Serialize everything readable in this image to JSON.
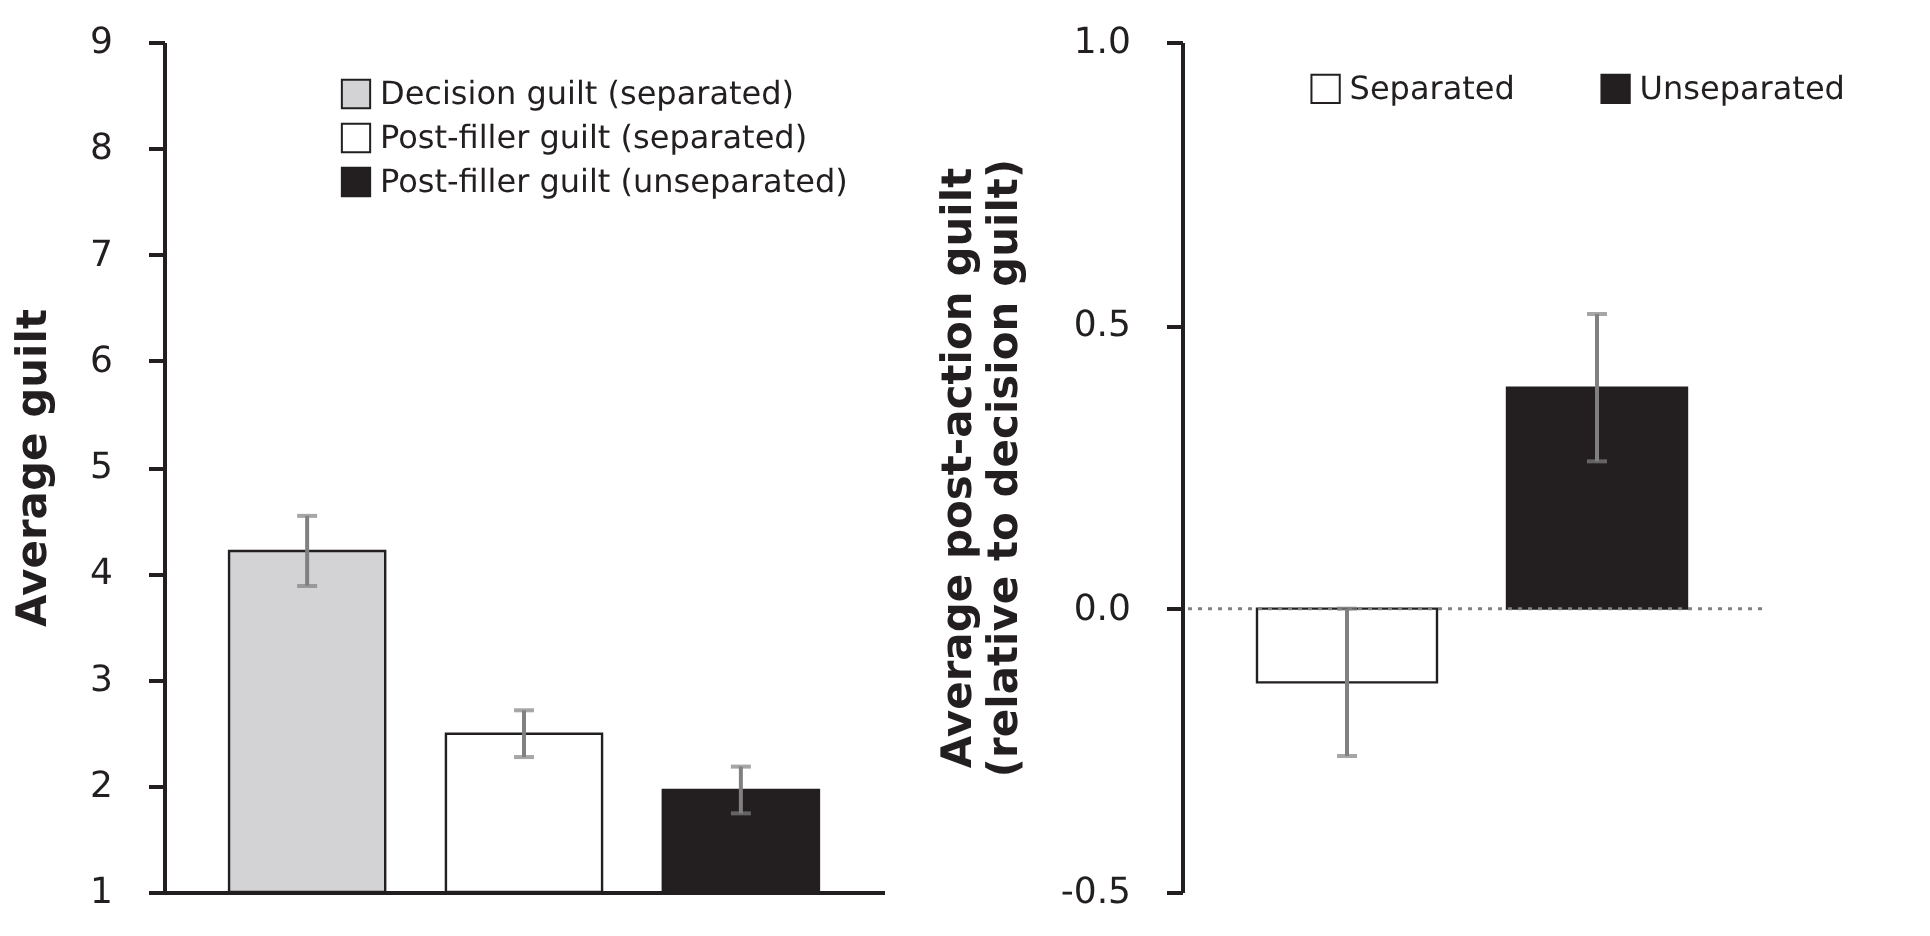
{
  "chart_data": [
    {
      "type": "bar",
      "ylabel": "Average guilt",
      "categories": [
        null,
        null,
        null
      ],
      "ylim": [
        1,
        9
      ],
      "yticks": [
        1,
        2,
        3,
        4,
        5,
        6,
        7,
        8,
        9
      ],
      "grid": false,
      "legend": "top right",
      "tick_labels": "y",
      "series": [
        {
          "name": "Decision guilt (separated)",
          "color": "#d3d3d5",
          "values": [
            4.21,
            null,
            null
          ],
          "errors": [
            0.33,
            null,
            null
          ]
        },
        {
          "name": "Post-filler guilt (separated)",
          "color": "#ffffff",
          "values": [
            null,
            2.49,
            null
          ],
          "errors": [
            null,
            0.22,
            null
          ]
        },
        {
          "name": "Post-filler guilt (unseparated)",
          "color": "#231f20",
          "values": [
            null,
            null,
            1.96
          ],
          "errors": [
            null,
            null,
            0.22
          ]
        }
      ]
    },
    {
      "type": "bar",
      "ylabel": "Average post-action guilt\n(relative to decision guilt)",
      "categories": [
        null,
        null
      ],
      "ylim": [
        -0.5,
        1.0
      ],
      "yticks": [
        {
          "value": -0.5,
          "label": "-0.5"
        },
        {
          "value": 0,
          "label": "0.0"
        },
        {
          "value": 0.5,
          "label": "0.5"
        },
        {
          "value": 1.0,
          "label": "1.0"
        }
      ],
      "grid": false,
      "legend": "top",
      "tick_labels": "y",
      "ref_lines": [
        {
          "axis": "y",
          "value": 0,
          "color": "#808080",
          "line_style": "dotted"
        }
      ],
      "series": [
        {
          "name": "Separated",
          "color": "#ffffff",
          "values": [
            -0.13,
            null
          ],
          "errors": [
            0.13,
            null
          ]
        },
        {
          "name": "Unseparated",
          "color": "#231f20",
          "values": [
            null,
            0.39
          ],
          "errors": [
            null,
            0.13
          ]
        }
      ]
    }
  ]
}
